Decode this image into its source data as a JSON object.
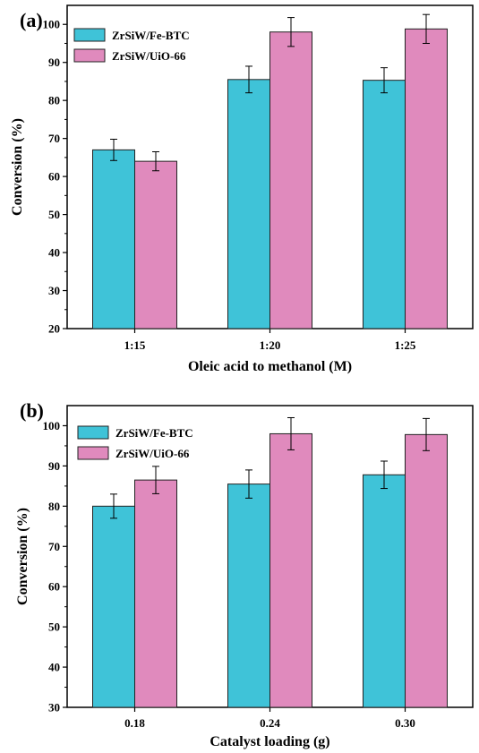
{
  "chart_data": [
    {
      "type": "bar",
      "panel_label": "(a)",
      "xlabel": "Oleic acid to methanol (M)",
      "ylabel": "Conversion (%)",
      "ylim": [
        20,
        105
      ],
      "yticks": [
        20,
        30,
        40,
        50,
        60,
        70,
        80,
        90,
        100
      ],
      "categories": [
        "1:15",
        "1:20",
        "1:25"
      ],
      "series": [
        {
          "name": "ZrSiW/Fe-BTC",
          "values": [
            67,
            85.5,
            85.3
          ],
          "errors": [
            2.8,
            3.5,
            3.3
          ],
          "color": "#3fc3d8"
        },
        {
          "name": "ZrSiW/UiO-66",
          "values": [
            64,
            98,
            98.8
          ],
          "errors": [
            2.5,
            3.8,
            3.8
          ],
          "color": "#e08abd"
        }
      ],
      "legend": "top-left",
      "grid": false
    },
    {
      "type": "bar",
      "panel_label": "(b)",
      "xlabel": "Catalyst loading (g)",
      "ylabel": "Conversion (%)",
      "ylim": [
        30,
        105
      ],
      "yticks": [
        30,
        40,
        50,
        60,
        70,
        80,
        90,
        100
      ],
      "categories": [
        "0.18",
        "0.24",
        "0.30"
      ],
      "series": [
        {
          "name": "ZrSiW/Fe-BTC",
          "values": [
            80,
            85.5,
            87.8
          ],
          "errors": [
            3,
            3.5,
            3.4
          ],
          "color": "#3fc3d8"
        },
        {
          "name": "ZrSiW/UiO-66",
          "values": [
            86.5,
            98,
            97.8
          ],
          "errors": [
            3.4,
            4,
            4
          ],
          "color": "#e08abd"
        }
      ],
      "legend": "top-left",
      "grid": false
    }
  ]
}
